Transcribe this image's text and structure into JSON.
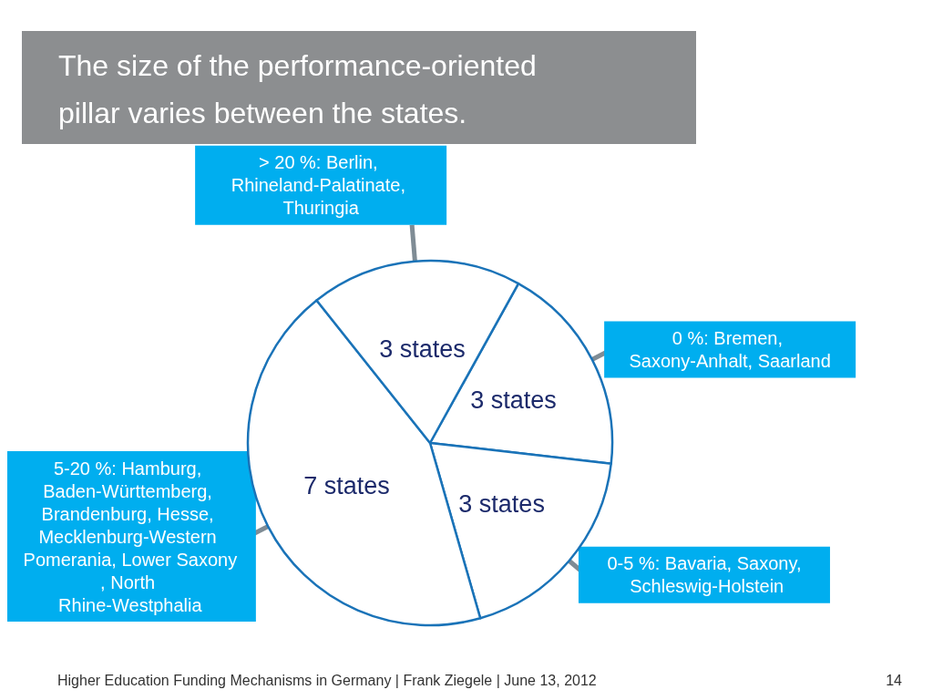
{
  "chart_data": {
    "type": "pie",
    "title": "The size of the performance-oriented pillar varies between the states.",
    "categories": [
      "0 %: Bremen, Saxony-Anhalt, Saarland",
      "0-5 %: Bavaria, Saxony, Schleswig-Holstein",
      "5-20 %: Hamburg, Baden-Württemberg, Brandenburg, Hesse, Mecklenburg-Western Pomerania, Lower Saxony, North Rhine-Westphalia",
      "> 20 %: Berlin, Rhineland-Palatinate, Thuringia"
    ],
    "values": [
      3,
      3,
      7,
      3
    ],
    "value_labels": [
      "3 states",
      "3 states",
      "7 states",
      "3 states"
    ],
    "colors": [
      "#ffffff",
      "#ffffff",
      "#ffffff",
      "#ffffff"
    ],
    "legend": false,
    "annotations": [
      "Higher Education Funding Mechanisms in Germany | Frank Ziegele | June 13, 2012",
      "14"
    ]
  }
}
